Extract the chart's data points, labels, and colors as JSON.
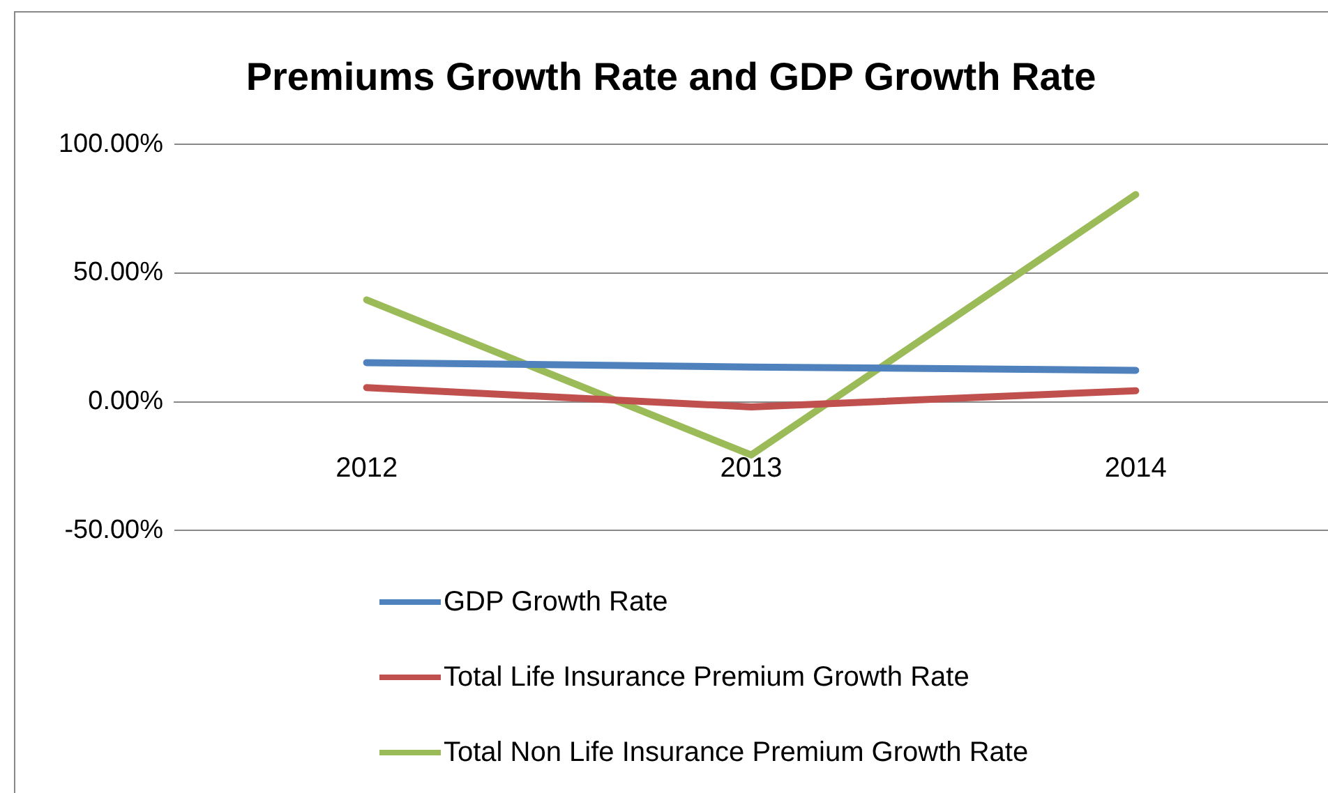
{
  "chart_data": {
    "type": "line",
    "title": "Premiums Growth Rate and GDP Growth Rate",
    "categories": [
      "2012",
      "2013",
      "2014"
    ],
    "series": [
      {
        "name": "GDP Growth Rate",
        "color": "#4f81bd",
        "values": [
          15.2,
          13.5,
          12.2
        ]
      },
      {
        "name": "Total Life Insurance Premium Growth Rate",
        "color": "#c0504d",
        "values": [
          5.5,
          -2,
          4.3
        ]
      },
      {
        "name": "Total Non Life Insurance Premium Growth Rate",
        "color": "#9bbb59",
        "values": [
          39.6,
          -20.7,
          80.5
        ]
      }
    ],
    "ylim": [
      -50,
      100
    ],
    "yticks": [
      {
        "value": -50,
        "label": "-50.00%"
      },
      {
        "value": 0,
        "label": "0.00%"
      },
      {
        "value": 50,
        "label": "50.00%"
      },
      {
        "value": 100,
        "label": "100.00%"
      }
    ],
    "grid": "y",
    "legend": "bottom",
    "marker": "none",
    "line_style": "solid"
  }
}
